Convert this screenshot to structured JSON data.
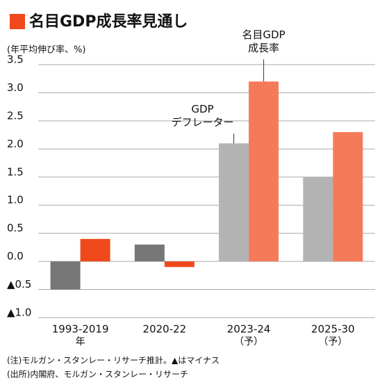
{
  "chart_data": {
    "type": "bar",
    "title": "名目GDP成長率見通し",
    "title_marker_color": "#f04a1c",
    "y_axis_label": "(年平均伸び率、%)",
    "categories": [
      "1993-2019",
      "2020-22",
      "2023-24",
      "2025-30"
    ],
    "category_notes": [
      "年",
      null,
      "（予）",
      "（予）"
    ],
    "series": [
      {
        "name": "GDP\nデフレーター",
        "colors": [
          "#777777",
          "#777777",
          "#b3b3b3",
          "#b3b3b3"
        ],
        "values": [
          -0.5,
          0.3,
          2.1,
          1.5
        ]
      },
      {
        "name": "名目GDP\n成長率",
        "colors": [
          "#f04a1c",
          "#f04a1c",
          "#f57a5a",
          "#f57a5a"
        ],
        "values": [
          0.4,
          -0.1,
          3.2,
          2.3
        ]
      }
    ],
    "ylim": [
      -1.0,
      3.5
    ],
    "yticks": [
      {
        "value": 3.5,
        "label": "3.5"
      },
      {
        "value": 3.0,
        "label": "3.0"
      },
      2.5,
      {
        "value": 2.0,
        "label": "2.0"
      },
      1.5,
      {
        "value": 1.0,
        "label": "1.0"
      },
      0.5,
      {
        "value": 0.0,
        "label": "0.0"
      },
      {
        "value": -0.5,
        "label": "▲0.5"
      },
      {
        "value": -1.0,
        "label": "▲1.0"
      }
    ],
    "grid": true,
    "notes": [
      "(注)モルガン・スタンレー・リサーチ推計。▲はマイナス",
      "(出所)内閣府、モルガン・スタンレー・リサーチ"
    ]
  }
}
